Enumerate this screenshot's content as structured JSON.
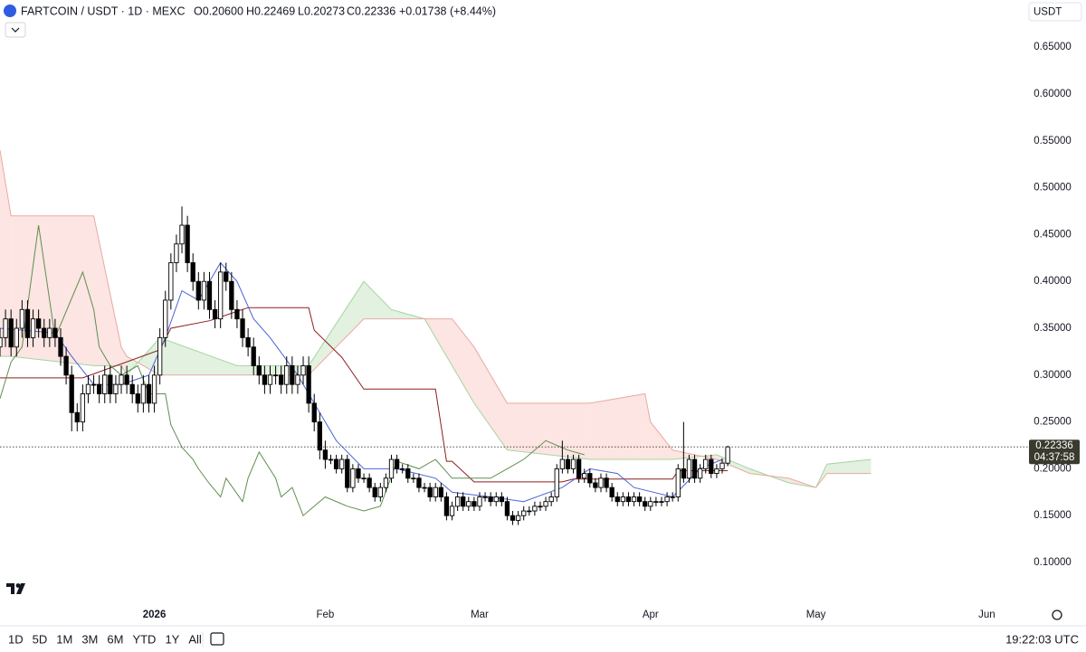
{
  "chart_data": {
    "type": "candlestick",
    "symbol": "FARTCOIN / USDT · 1D · MEXC",
    "legend_ohlc": [
      "O0.20600",
      "H0.22469",
      "L0.20273",
      "C0.22336",
      "+0.01738 (+8.44%)"
    ],
    "currency": "USDT",
    "countdown": "04:37:58",
    "clock": "19:22:03 UTC",
    "timeframes": [
      "1D",
      "5D",
      "1M",
      "3M",
      "6M",
      "YTD",
      "1Y",
      "All"
    ],
    "up_color": "#ffffff",
    "down_color": "#000000",
    "open": [
      0.33,
      0.34,
      0.36,
      0.33,
      0.35,
      0.37,
      0.34,
      0.36,
      0.35,
      0.34,
      0.35,
      0.34,
      0.32,
      0.3,
      0.26,
      0.25,
      0.28,
      0.29,
      0.29,
      0.28,
      0.3,
      0.28,
      0.29,
      0.3,
      0.29,
      0.28,
      0.27,
      0.29,
      0.27,
      0.3,
      0.34,
      0.38,
      0.42,
      0.44,
      0.46,
      0.42,
      0.4,
      0.38,
      0.4,
      0.37,
      0.36,
      0.41,
      0.4,
      0.37,
      0.36,
      0.34,
      0.33,
      0.31,
      0.3,
      0.29,
      0.3,
      0.3,
      0.29,
      0.31,
      0.29,
      0.3,
      0.31,
      0.27,
      0.25,
      0.22,
      0.21,
      0.21,
      0.2,
      0.21,
      0.18,
      0.2,
      0.19,
      0.19,
      0.18,
      0.17,
      0.18,
      0.19,
      0.21,
      0.2,
      0.2,
      0.19,
      0.19,
      0.18,
      0.18,
      0.17,
      0.18,
      0.17,
      0.15,
      0.16,
      0.17,
      0.16,
      0.165,
      0.16,
      0.17,
      0.17,
      0.165,
      0.17,
      0.165,
      0.15,
      0.145,
      0.15,
      0.155,
      0.155,
      0.16,
      0.16,
      0.165,
      0.17,
      0.2,
      0.21,
      0.2,
      0.21,
      0.19,
      0.195,
      0.185,
      0.18,
      0.19,
      0.18,
      0.17,
      0.165,
      0.17,
      0.165,
      0.17,
      0.165,
      0.16,
      0.165,
      0.165,
      0.165,
      0.17,
      0.17,
      0.2,
      0.19,
      0.21,
      0.19,
      0.2,
      0.21,
      0.195,
      0.2,
      0.206
    ],
    "high": [
      0.35,
      0.37,
      0.37,
      0.36,
      0.38,
      0.38,
      0.37,
      0.37,
      0.36,
      0.36,
      0.36,
      0.35,
      0.33,
      0.31,
      0.27,
      0.29,
      0.3,
      0.3,
      0.3,
      0.31,
      0.31,
      0.3,
      0.31,
      0.31,
      0.3,
      0.29,
      0.3,
      0.3,
      0.31,
      0.35,
      0.39,
      0.43,
      0.45,
      0.48,
      0.47,
      0.43,
      0.41,
      0.41,
      0.41,
      0.38,
      0.42,
      0.42,
      0.41,
      0.38,
      0.37,
      0.35,
      0.34,
      0.32,
      0.31,
      0.31,
      0.31,
      0.31,
      0.32,
      0.32,
      0.31,
      0.32,
      0.32,
      0.28,
      0.26,
      0.23,
      0.215,
      0.215,
      0.215,
      0.215,
      0.205,
      0.205,
      0.195,
      0.195,
      0.185,
      0.185,
      0.195,
      0.215,
      0.215,
      0.205,
      0.205,
      0.195,
      0.195,
      0.185,
      0.185,
      0.185,
      0.185,
      0.175,
      0.165,
      0.175,
      0.175,
      0.17,
      0.17,
      0.175,
      0.175,
      0.175,
      0.175,
      0.175,
      0.17,
      0.155,
      0.155,
      0.16,
      0.16,
      0.165,
      0.165,
      0.17,
      0.175,
      0.205,
      0.23,
      0.215,
      0.215,
      0.215,
      0.2,
      0.2,
      0.19,
      0.195,
      0.195,
      0.185,
      0.175,
      0.175,
      0.175,
      0.175,
      0.175,
      0.17,
      0.17,
      0.17,
      0.17,
      0.175,
      0.175,
      0.205,
      0.25,
      0.215,
      0.215,
      0.205,
      0.215,
      0.215,
      0.205,
      0.211,
      0.22469
    ],
    "low": [
      0.32,
      0.33,
      0.32,
      0.32,
      0.34,
      0.33,
      0.33,
      0.34,
      0.33,
      0.33,
      0.33,
      0.31,
      0.29,
      0.24,
      0.24,
      0.24,
      0.27,
      0.28,
      0.27,
      0.27,
      0.27,
      0.27,
      0.28,
      0.28,
      0.27,
      0.26,
      0.26,
      0.26,
      0.26,
      0.29,
      0.33,
      0.37,
      0.41,
      0.43,
      0.41,
      0.39,
      0.37,
      0.37,
      0.36,
      0.35,
      0.35,
      0.39,
      0.36,
      0.35,
      0.33,
      0.32,
      0.3,
      0.29,
      0.28,
      0.28,
      0.29,
      0.28,
      0.28,
      0.28,
      0.28,
      0.29,
      0.26,
      0.24,
      0.21,
      0.2,
      0.205,
      0.195,
      0.195,
      0.175,
      0.175,
      0.185,
      0.185,
      0.175,
      0.165,
      0.165,
      0.175,
      0.185,
      0.195,
      0.195,
      0.185,
      0.185,
      0.175,
      0.175,
      0.165,
      0.165,
      0.165,
      0.145,
      0.145,
      0.155,
      0.155,
      0.155,
      0.155,
      0.155,
      0.165,
      0.16,
      0.16,
      0.16,
      0.145,
      0.14,
      0.14,
      0.145,
      0.15,
      0.15,
      0.155,
      0.155,
      0.16,
      0.165,
      0.195,
      0.195,
      0.195,
      0.185,
      0.185,
      0.18,
      0.175,
      0.175,
      0.175,
      0.165,
      0.16,
      0.16,
      0.16,
      0.16,
      0.16,
      0.155,
      0.155,
      0.16,
      0.16,
      0.16,
      0.165,
      0.165,
      0.185,
      0.185,
      0.185,
      0.185,
      0.195,
      0.19,
      0.19,
      0.195,
      0.20273
    ],
    "close": [
      0.34,
      0.36,
      0.33,
      0.35,
      0.37,
      0.34,
      0.36,
      0.35,
      0.34,
      0.35,
      0.34,
      0.32,
      0.3,
      0.26,
      0.25,
      0.28,
      0.29,
      0.29,
      0.28,
      0.3,
      0.28,
      0.29,
      0.3,
      0.29,
      0.28,
      0.27,
      0.29,
      0.27,
      0.3,
      0.34,
      0.38,
      0.42,
      0.44,
      0.46,
      0.42,
      0.4,
      0.38,
      0.4,
      0.37,
      0.36,
      0.41,
      0.4,
      0.37,
      0.36,
      0.34,
      0.33,
      0.31,
      0.3,
      0.29,
      0.3,
      0.3,
      0.29,
      0.31,
      0.29,
      0.3,
      0.31,
      0.27,
      0.25,
      0.22,
      0.21,
      0.21,
      0.2,
      0.21,
      0.18,
      0.2,
      0.19,
      0.19,
      0.18,
      0.17,
      0.18,
      0.19,
      0.21,
      0.2,
      0.2,
      0.19,
      0.19,
      0.18,
      0.18,
      0.17,
      0.18,
      0.17,
      0.15,
      0.16,
      0.17,
      0.16,
      0.165,
      0.16,
      0.17,
      0.17,
      0.165,
      0.17,
      0.165,
      0.15,
      0.145,
      0.15,
      0.155,
      0.155,
      0.16,
      0.16,
      0.165,
      0.17,
      0.2,
      0.21,
      0.2,
      0.21,
      0.19,
      0.195,
      0.185,
      0.18,
      0.19,
      0.18,
      0.17,
      0.165,
      0.17,
      0.165,
      0.17,
      0.165,
      0.16,
      0.165,
      0.165,
      0.165,
      0.17,
      0.17,
      0.2,
      0.19,
      0.21,
      0.19,
      0.2,
      0.21,
      0.195,
      0.2,
      0.206,
      0.22336
    ],
    "overlays": [
      {
        "color": "#8e1f1f",
        "x": [
          0,
          15,
          29,
          31,
          38,
          45,
          56,
          57,
          62,
          66,
          79,
          81,
          82,
          86,
          102,
          104,
          122,
          123,
          132
        ],
        "values": [
          0.297,
          0.297,
          0.327,
          0.35,
          0.358,
          0.372,
          0.372,
          0.348,
          0.319,
          0.285,
          0.285,
          0.208,
          0.208,
          0.186,
          0.186,
          0.189,
          0.189,
          0.198,
          0.198
        ]
      },
      {
        "color": "#4a63d8",
        "x": [
          0,
          10,
          13,
          17,
          22,
          27,
          30,
          33,
          36,
          40,
          43,
          46,
          49,
          54,
          58,
          61,
          66,
          72,
          79,
          82,
          89,
          95,
          102,
          107,
          112,
          115,
          122,
          127,
          131
        ],
        "values": [
          0.35,
          0.345,
          0.32,
          0.29,
          0.29,
          0.3,
          0.34,
          0.39,
          0.38,
          0.42,
          0.4,
          0.36,
          0.34,
          0.3,
          0.26,
          0.23,
          0.2,
          0.2,
          0.19,
          0.175,
          0.17,
          0.165,
          0.18,
          0.2,
          0.195,
          0.18,
          0.17,
          0.2,
          0.21
        ]
      },
      {
        "color": "#5e8f4e",
        "x": [
          0,
          2,
          4,
          7,
          9,
          10,
          15,
          17,
          18,
          20,
          22,
          25,
          27,
          30,
          31,
          33,
          35,
          36,
          38,
          40,
          41,
          44,
          45,
          47,
          50,
          51,
          53,
          55,
          57,
          59,
          63,
          66,
          69,
          72,
          76,
          79,
          82,
          89,
          92,
          95,
          99,
          103,
          106
        ],
        "values": [
          0.275,
          0.314,
          0.33,
          0.46,
          0.38,
          0.34,
          0.41,
          0.37,
          0.33,
          0.31,
          0.3,
          0.31,
          0.28,
          0.28,
          0.247,
          0.223,
          0.21,
          0.2,
          0.184,
          0.17,
          0.19,
          0.165,
          0.19,
          0.218,
          0.19,
          0.17,
          0.18,
          0.15,
          0.16,
          0.17,
          0.16,
          0.155,
          0.16,
          0.208,
          0.2,
          0.21,
          0.19,
          0.19,
          0.2,
          0.21,
          0.23,
          0.22,
          0.215
        ]
      }
    ],
    "cloud": {
      "x": [
        0,
        2,
        17,
        22,
        23,
        29,
        43,
        56,
        66,
        71,
        77,
        82,
        86,
        92,
        107,
        117,
        118,
        122,
        130,
        136,
        143,
        148,
        150,
        158
      ],
      "span_a": [
        0.32,
        0.32,
        0.31,
        0.31,
        0.3,
        0.34,
        0.31,
        0.31,
        0.4,
        0.37,
        0.36,
        0.31,
        0.27,
        0.22,
        0.21,
        0.21,
        0.21,
        0.21,
        0.215,
        0.2,
        0.185,
        0.18,
        0.205,
        0.21
      ],
      "span_b": [
        0.54,
        0.47,
        0.47,
        0.33,
        0.32,
        0.3,
        0.3,
        0.3,
        0.36,
        0.36,
        0.36,
        0.36,
        0.33,
        0.27,
        0.27,
        0.28,
        0.25,
        0.22,
        0.21,
        0.195,
        0.19,
        0.18,
        0.195,
        0.195
      ],
      "bull_color": "#d8ecd5",
      "bear_color": "#fbdcd8",
      "span_a_color": "#a6d49f",
      "span_b_color": "#eaa9a1"
    },
    "xlim": [
      0,
      185.5
    ],
    "xticks": [
      {
        "value": 28,
        "label": "2026"
      },
      {
        "value": 59,
        "label": "Feb"
      },
      {
        "value": 87,
        "label": "Mar"
      },
      {
        "value": 118,
        "label": "Apr"
      },
      {
        "value": 148,
        "label": "May"
      },
      {
        "value": 179,
        "label": "Jun"
      }
    ],
    "ylim": [
      0.0585,
      0.7004
    ],
    "yticks": [
      {
        "value": 0.1,
        "label": "0.10000"
      },
      {
        "value": 0.15,
        "label": "0.15000"
      },
      {
        "value": 0.2,
        "label": "0.20000"
      },
      {
        "value": 0.25,
        "label": "0.25000"
      },
      {
        "value": 0.3,
        "label": "0.30000"
      },
      {
        "value": 0.35,
        "label": "0.35000"
      },
      {
        "value": 0.4,
        "label": "0.40000"
      },
      {
        "value": 0.45,
        "label": "0.45000"
      },
      {
        "value": 0.5,
        "label": "0.50000"
      },
      {
        "value": 0.55,
        "label": "0.55000"
      },
      {
        "value": 0.6,
        "label": "0.60000"
      },
      {
        "value": 0.65,
        "label": "0.65000"
      }
    ],
    "grid": false
  }
}
